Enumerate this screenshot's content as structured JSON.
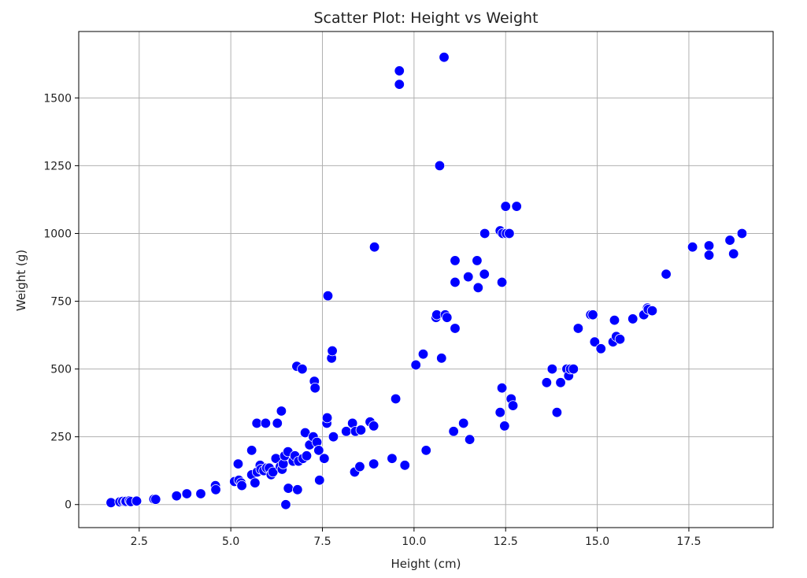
{
  "chart_data": {
    "type": "scatter",
    "title": "Scatter Plot: Height vs Weight",
    "xlabel": "Height (cm)",
    "ylabel": "Weight (g)",
    "xlim": [
      0.85,
      19.8
    ],
    "ylim": [
      -85,
      1745
    ],
    "xticks": [
      2.5,
      5.0,
      7.5,
      10.0,
      12.5,
      15.0,
      17.5
    ],
    "xtick_labels": [
      "2.5",
      "5.0",
      "7.5",
      "10.0",
      "12.5",
      "15.0",
      "17.5"
    ],
    "yticks": [
      0,
      250,
      500,
      750,
      1000,
      1250,
      1500
    ],
    "ytick_labels": [
      "0",
      "250",
      "500",
      "750",
      "1000",
      "1250",
      "1500"
    ],
    "grid": true,
    "marker_color": "#0000ff",
    "series": [
      {
        "points": [
          [
            1.73,
            7
          ],
          [
            1.97,
            10
          ],
          [
            2.05,
            12
          ],
          [
            2.12,
            10
          ],
          [
            2.14,
            12
          ],
          [
            2.24,
            14
          ],
          [
            2.27,
            11
          ],
          [
            2.43,
            13
          ],
          [
            2.9,
            20
          ],
          [
            2.95,
            19
          ],
          [
            3.52,
            32
          ],
          [
            3.8,
            40
          ],
          [
            4.18,
            40
          ],
          [
            4.58,
            70
          ],
          [
            4.59,
            55
          ],
          [
            5.1,
            85
          ],
          [
            5.2,
            150
          ],
          [
            5.22,
            90
          ],
          [
            5.28,
            80
          ],
          [
            5.3,
            70
          ],
          [
            5.57,
            200
          ],
          [
            5.57,
            110
          ],
          [
            5.66,
            80
          ],
          [
            5.71,
            300
          ],
          [
            5.72,
            120
          ],
          [
            5.8,
            145
          ],
          [
            5.82,
            130
          ],
          [
            5.9,
            125
          ],
          [
            5.95,
            300
          ],
          [
            5.98,
            135
          ],
          [
            6.05,
            135
          ],
          [
            6.1,
            110
          ],
          [
            6.15,
            120
          ],
          [
            6.23,
            170
          ],
          [
            6.27,
            300
          ],
          [
            6.35,
            140
          ],
          [
            6.38,
            345
          ],
          [
            6.4,
            130
          ],
          [
            6.43,
            150
          ],
          [
            6.47,
            180
          ],
          [
            6.5,
            0
          ],
          [
            6.56,
            195
          ],
          [
            6.57,
            60
          ],
          [
            6.7,
            160
          ],
          [
            6.75,
            180
          ],
          [
            6.8,
            510
          ],
          [
            6.82,
            55
          ],
          [
            6.85,
            160
          ],
          [
            6.95,
            500
          ],
          [
            6.97,
            170
          ],
          [
            7.03,
            265
          ],
          [
            7.07,
            180
          ],
          [
            7.15,
            220
          ],
          [
            7.25,
            250
          ],
          [
            7.28,
            455
          ],
          [
            7.3,
            430
          ],
          [
            7.35,
            230
          ],
          [
            7.4,
            200
          ],
          [
            7.42,
            90
          ],
          [
            7.55,
            170
          ],
          [
            7.62,
            300
          ],
          [
            7.63,
            320
          ],
          [
            7.65,
            770
          ],
          [
            7.75,
            540
          ],
          [
            7.77,
            567
          ],
          [
            7.8,
            250
          ],
          [
            8.15,
            270
          ],
          [
            8.32,
            300
          ],
          [
            8.38,
            120
          ],
          [
            8.4,
            270
          ],
          [
            8.52,
            140
          ],
          [
            8.55,
            275
          ],
          [
            8.8,
            305
          ],
          [
            8.9,
            290
          ],
          [
            8.9,
            150
          ],
          [
            8.92,
            950
          ],
          [
            9.4,
            170
          ],
          [
            9.5,
            390
          ],
          [
            9.6,
            1600
          ],
          [
            9.6,
            1550
          ],
          [
            9.75,
            145
          ],
          [
            10.05,
            515
          ],
          [
            10.25,
            555
          ],
          [
            10.33,
            200
          ],
          [
            10.6,
            690
          ],
          [
            10.62,
            700
          ],
          [
            10.7,
            1250
          ],
          [
            10.75,
            540
          ],
          [
            10.82,
            1650
          ],
          [
            10.85,
            700
          ],
          [
            10.9,
            690
          ],
          [
            11.08,
            270
          ],
          [
            11.12,
            900
          ],
          [
            11.12,
            820
          ],
          [
            11.12,
            650
          ],
          [
            11.35,
            300
          ],
          [
            11.48,
            840
          ],
          [
            11.52,
            240
          ],
          [
            11.72,
            900
          ],
          [
            11.75,
            800
          ],
          [
            11.92,
            850
          ],
          [
            11.93,
            1000
          ],
          [
            12.35,
            1010
          ],
          [
            12.35,
            340
          ],
          [
            12.4,
            820
          ],
          [
            12.4,
            430
          ],
          [
            12.42,
            1000
          ],
          [
            12.47,
            290
          ],
          [
            12.5,
            1100
          ],
          [
            12.52,
            1000
          ],
          [
            12.6,
            1000
          ],
          [
            12.65,
            390
          ],
          [
            12.7,
            365
          ],
          [
            12.8,
            1100
          ],
          [
            13.62,
            450
          ],
          [
            13.77,
            500
          ],
          [
            13.9,
            340
          ],
          [
            14.0,
            450
          ],
          [
            14.17,
            500
          ],
          [
            14.22,
            475
          ],
          [
            14.27,
            500
          ],
          [
            14.35,
            500
          ],
          [
            14.48,
            650
          ],
          [
            14.82,
            700
          ],
          [
            14.88,
            700
          ],
          [
            14.93,
            600
          ],
          [
            15.1,
            575
          ],
          [
            15.43,
            600
          ],
          [
            15.47,
            680
          ],
          [
            15.52,
            620
          ],
          [
            15.62,
            610
          ],
          [
            15.97,
            685
          ],
          [
            16.27,
            700
          ],
          [
            16.37,
            725
          ],
          [
            16.39,
            720
          ],
          [
            16.5,
            715
          ],
          [
            16.88,
            850
          ],
          [
            17.6,
            950
          ],
          [
            18.05,
            955
          ],
          [
            18.05,
            920
          ],
          [
            18.62,
            975
          ],
          [
            18.72,
            925
          ],
          [
            18.95,
            1000
          ]
        ]
      }
    ]
  }
}
